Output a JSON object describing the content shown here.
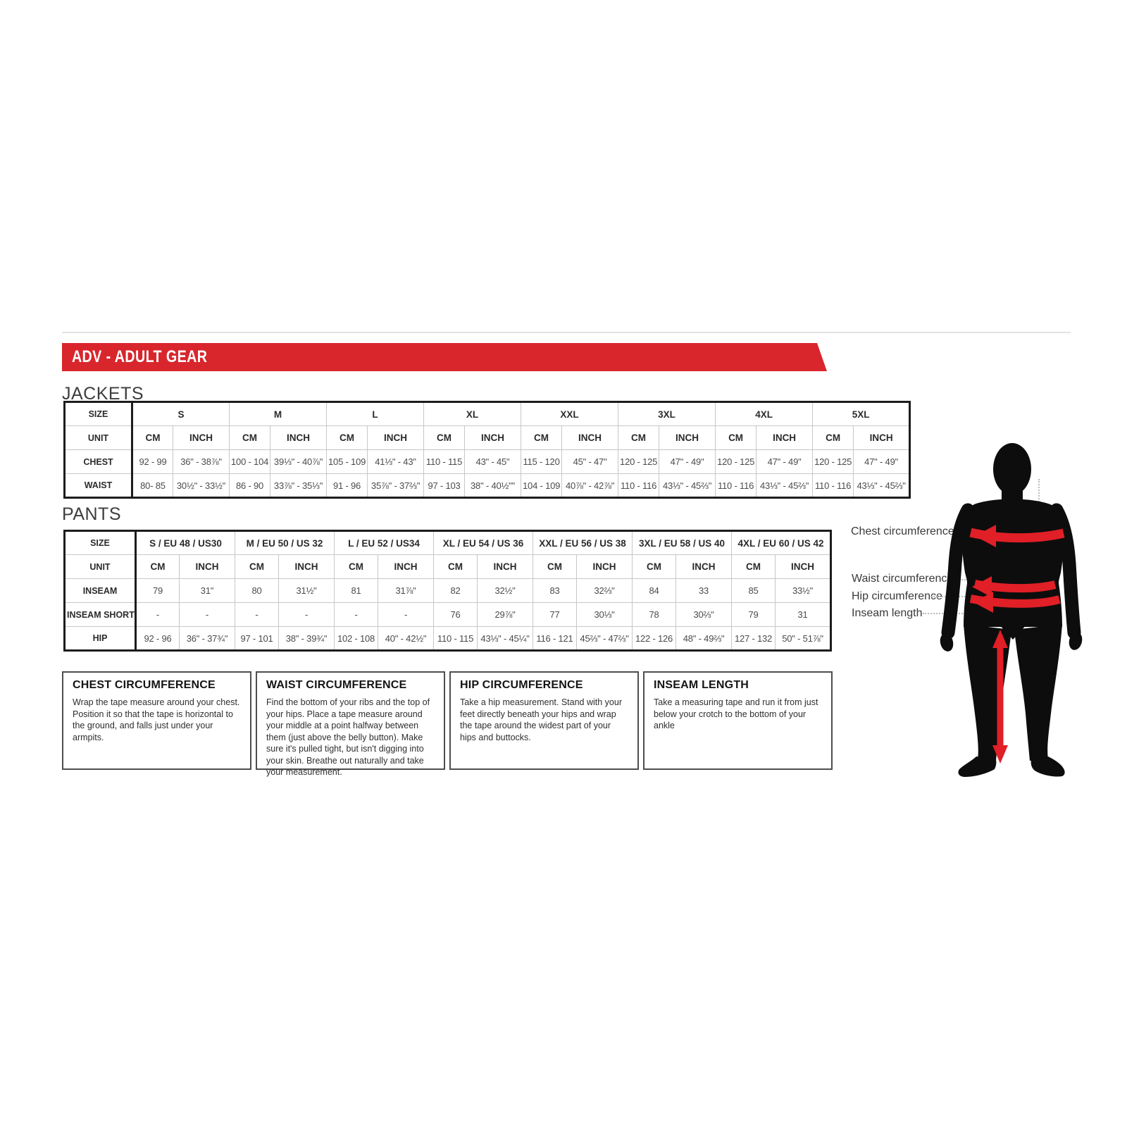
{
  "banner": {
    "title": "ADV - ADULT GEAR"
  },
  "colors": {
    "banner_red": "#d8262c",
    "arrow_red": "#e01f26",
    "silhouette_black": "#0d0d0d"
  },
  "jackets": {
    "label": "JACKETS",
    "size_header": "SIZE",
    "unit_header": "UNIT",
    "unit_cols": [
      "CM",
      "INCH"
    ],
    "groups": [
      "S",
      "M",
      "L",
      "XL",
      "XXL",
      "3XL",
      "4XL",
      "5XL"
    ],
    "rows": [
      {
        "label": "CHEST",
        "cells": [
          "92 - 99",
          "36\" - 38⅞\"",
          "100 - 104",
          "39⅓\" - 40⅞\"",
          "105 - 109",
          "41⅓\" - 43\"",
          "110 - 115",
          "43\" - 45\"",
          "115 - 120",
          "45\" - 47\"",
          "120 - 125",
          "47\" - 49\"",
          "120 - 125",
          "47\" - 49\"",
          "120 - 125",
          "47\" - 49\""
        ]
      },
      {
        "label": "WAIST",
        "cells": [
          "80- 85",
          "30½\" - 33½\"",
          "86 - 90",
          "33⅞\" - 35⅓\"",
          "91 - 96",
          "35⅞\" - 37⅔\"",
          "97 - 103",
          "38\" - 40½\"\"",
          "104 - 109",
          "40⅞\" - 42⅞\"",
          "110 - 116",
          "43⅓\" - 45⅔\"",
          "110 - 116",
          "43⅓\" - 45⅔\"",
          "110 - 116",
          "43⅓\" - 45⅔\""
        ]
      }
    ]
  },
  "pants": {
    "label": "PANTS",
    "size_header": "SIZE",
    "unit_header": "UNIT",
    "unit_cols": [
      "CM",
      "INCH"
    ],
    "groups": [
      "S / EU 48 / US30",
      "M / EU 50 / US 32",
      "L / EU 52 / US34",
      "XL / EU 54 / US 36",
      "XXL / EU 56 / US 38",
      "3XL / EU 58 / US 40",
      "4XL / EU 60 / US 42"
    ],
    "rows": [
      {
        "label": "INSEAM",
        "cells": [
          "79",
          "31\"",
          "80",
          "31½\"",
          "81",
          "31⅞\"",
          "82",
          "32½\"",
          "83",
          "32⅔\"",
          "84",
          "33",
          "85",
          "33½\""
        ]
      },
      {
        "label": "INSEAM SHORT",
        "cells": [
          "-",
          "-",
          "-",
          "-",
          "-",
          "-",
          "76",
          "29⅞\"",
          "77",
          "30⅓\"",
          "78",
          "30⅔\"",
          "79",
          "31"
        ]
      },
      {
        "label": "HIP",
        "cells": [
          "92 - 96",
          "36\" - 37¾\"",
          "97 - 101",
          "38\" - 39¾\"",
          "102 - 108",
          "40\" - 42½\"",
          "110 - 115",
          "43⅓\" - 45¼\"",
          "116 - 121",
          "45⅔\" - 47⅔\"",
          "122 - 126",
          "48\" - 49⅔\"",
          "127 - 132",
          "50\" - 51⅞\""
        ]
      }
    ]
  },
  "info_boxes": [
    {
      "title": "CHEST CIRCUMFERENCE",
      "body": "Wrap the tape measure around your chest. Position it so that the tape is horizontal to the ground, and falls just under your armpits."
    },
    {
      "title": "WAIST CIRCUMFERENCE",
      "body": "Find the bottom of your ribs and the top of your hips. Place a tape measure around your middle at a point halfway between them (just above the belly button). Make sure it's pulled tight, but isn't digging into your skin. Breathe out naturally and take your measurement."
    },
    {
      "title": "HIP CIRCUMFERENCE",
      "body": "Take a hip measurement. Stand with your feet directly beneath your hips and wrap the tape around the widest part of your hips and buttocks."
    },
    {
      "title": "INSEAM LENGTH",
      "body": "Take a measuring tape and run it from just below your crotch to the bottom of your ankle"
    }
  ],
  "figure_labels": {
    "chest": "Chest circumference",
    "waist": "Waist circumference",
    "hip": "Hip circumference",
    "inseam": "Inseam length"
  }
}
